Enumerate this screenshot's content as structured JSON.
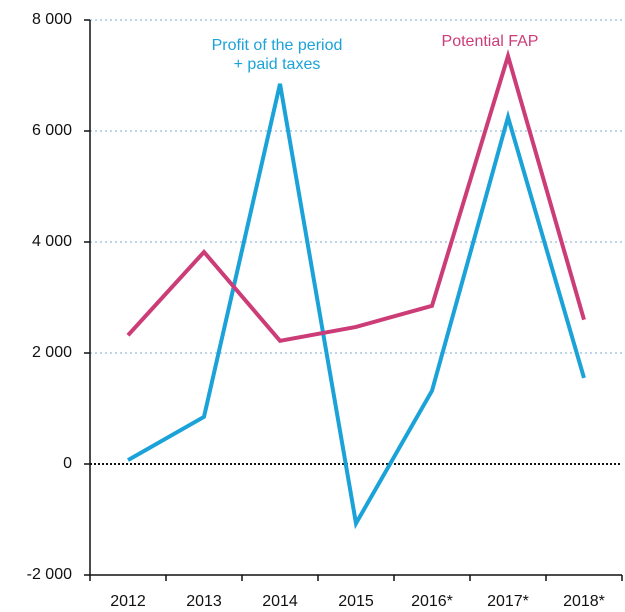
{
  "chart_data": {
    "type": "line",
    "categories": [
      "2012",
      "2013",
      "2014",
      "2015",
      "2016*",
      "2017*",
      "2018*"
    ],
    "series": [
      {
        "name": "Profit of the period\n+ paid taxes",
        "color": "#1ba3d9",
        "values": [
          70,
          850,
          6850,
          -1070,
          1320,
          6250,
          1550
        ]
      },
      {
        "name": "Potential FAP",
        "color": "#cc3d78",
        "values": [
          2320,
          3820,
          2220,
          2470,
          2850,
          7350,
          2600
        ]
      }
    ],
    "ylim": [
      -2000,
      8000
    ],
    "yticks": [
      {
        "value": -2000,
        "label": "-2 000"
      },
      0,
      {
        "value": 2000,
        "label": "2 000"
      },
      {
        "value": 4000,
        "label": "4 000"
      },
      {
        "value": 6000,
        "label": "6 000"
      },
      {
        "value": 8000,
        "label": "8 000"
      }
    ],
    "grid": true
  }
}
